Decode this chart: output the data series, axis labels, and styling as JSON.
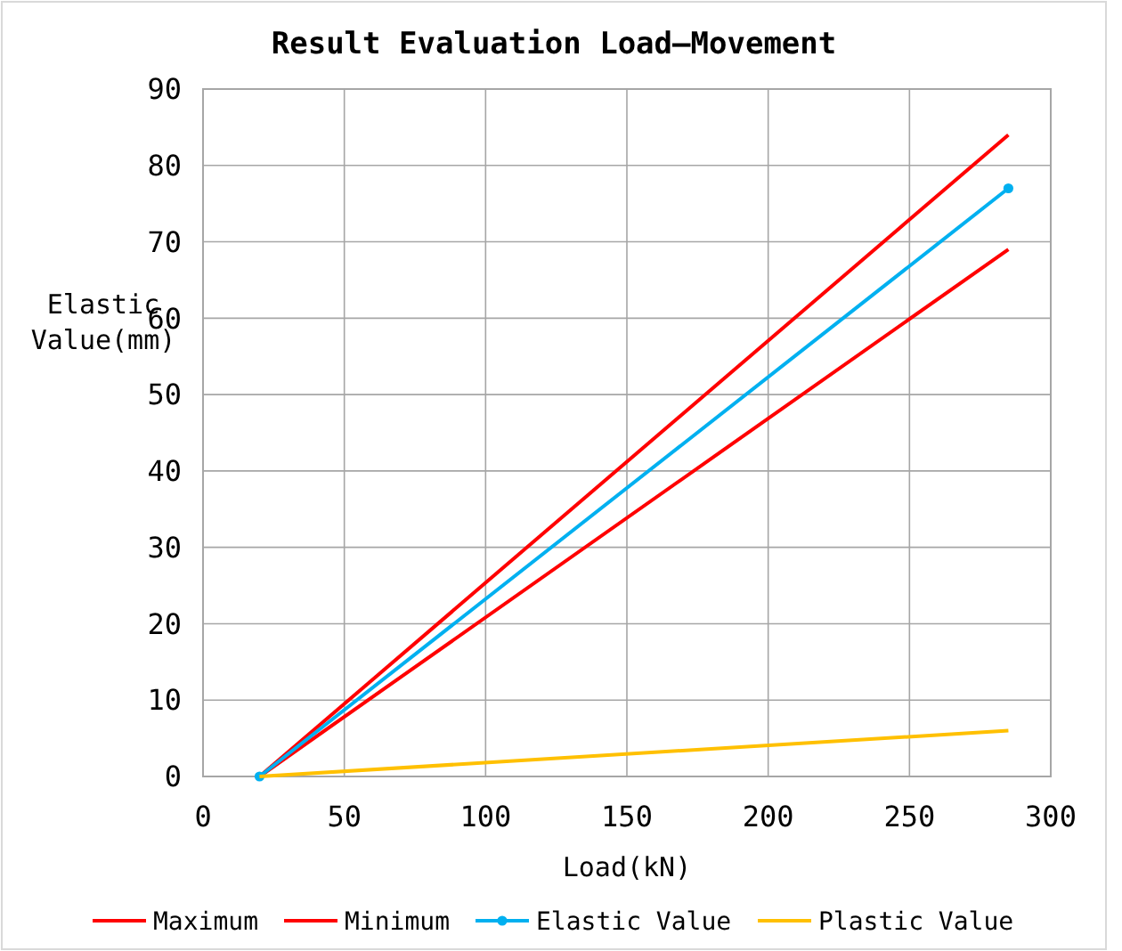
{
  "chart_data": {
    "type": "line",
    "title": "Result Evaluation  Load—Movement",
    "xlabel": "Load(kN)",
    "ylabel": "Elastic\nValue(mm)",
    "x": [
      20,
      285
    ],
    "xlim": [
      0,
      300
    ],
    "xticks": [
      0,
      50,
      100,
      150,
      200,
      250,
      300
    ],
    "ylim": [
      0,
      90
    ],
    "yticks": [
      0,
      10,
      20,
      30,
      40,
      50,
      60,
      70,
      80,
      90
    ],
    "grid": true,
    "legend": "bottom",
    "series": [
      {
        "name": "Maximum",
        "color": "#ff0000",
        "values": [
          0,
          84
        ],
        "marker": "none"
      },
      {
        "name": "Minimum",
        "color": "#ff0000",
        "values": [
          0,
          69
        ],
        "marker": "none"
      },
      {
        "name": "Elastic Value",
        "color": "#00b0f0",
        "values": [
          0,
          77
        ],
        "marker": "circle"
      },
      {
        "name": "Plastic Value",
        "color": "#ffc000",
        "values": [
          0,
          6
        ],
        "marker": "none"
      }
    ]
  }
}
